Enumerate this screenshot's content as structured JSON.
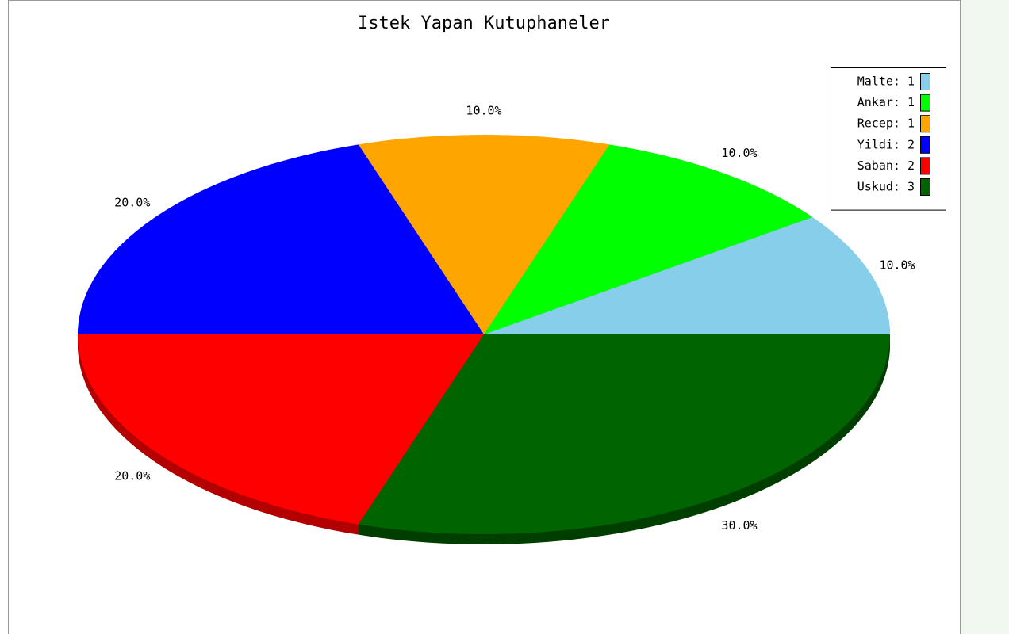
{
  "chart_data": {
    "type": "pie",
    "title": "Istek Yapan Kutuphaneler",
    "categories": [
      "Malte",
      "Ankar",
      "Recep",
      "Yildi",
      "Saban",
      "Uskud"
    ],
    "values": [
      1,
      1,
      1,
      2,
      2,
      3
    ],
    "legend_labels": [
      "Malte: 1",
      "Ankar: 1",
      "Recep: 1",
      "Yildi: 2",
      "Saban: 2",
      "Uskud: 3"
    ],
    "percents": [
      10,
      10,
      10,
      20,
      20,
      30
    ],
    "percent_labels": [
      "10.0%",
      "10.0%",
      "10.0%",
      "20.0%",
      "20.0%",
      "30.0%"
    ],
    "colors": [
      "#87ceeb",
      "#00ff00",
      "#ffa500",
      "#0000ff",
      "#ff0000",
      "#006400"
    ],
    "side_colors": [
      "#5f90a5",
      "#00b300",
      "#b37400",
      "#0000b3",
      "#b30000",
      "#003f00"
    ],
    "legend": "upper right"
  }
}
